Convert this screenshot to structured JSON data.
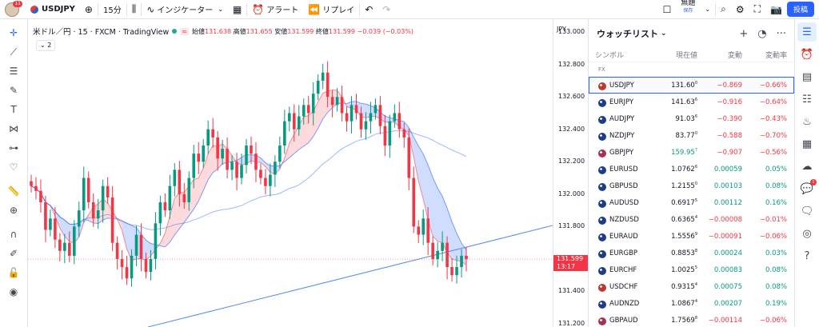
{
  "topbar": {
    "notif_count": "11",
    "symbol": "USDJPY",
    "interval": "15分",
    "indicators_label": "インジケーター",
    "alert_label": "アラート",
    "replay_label": "リプレイ",
    "layout_name": "無題",
    "layout_sub": "保存",
    "post_label": "投稿"
  },
  "chart": {
    "title": "米ドル／円 · 15 · FXCM · TradingView",
    "ohlc": {
      "open_label": "始値",
      "open": "131.638",
      "high_label": "高値",
      "high": "131.655",
      "low_label": "安値",
      "low": "131.599",
      "close_label": "終値",
      "close": "131.599",
      "change": "−0.039 (−0.03%)"
    },
    "indicator_toggle": "⌄ 2",
    "currency": "JPY",
    "current_price": "131.599",
    "countdown": "13:17",
    "axis_ticks": [
      "133.000",
      "132.800",
      "132.600",
      "132.400",
      "132.200",
      "132.000",
      "131.800",
      "131.400",
      "131.200"
    ]
  },
  "chart_data": {
    "type": "candlestick",
    "title": "",
    "ylim": [
      131.2,
      133.05
    ],
    "yticks": [
      131.2,
      131.4,
      131.8,
      132.0,
      132.2,
      132.4,
      132.6,
      132.8,
      133.0
    ],
    "close_series": [
      132.05,
      132.02,
      131.95,
      131.78,
      131.85,
      131.72,
      131.65,
      131.7,
      131.62,
      131.8,
      131.9,
      132.1,
      131.95,
      131.85,
      131.9,
      132.05,
      131.98,
      131.7,
      131.6,
      131.55,
      131.48,
      131.62,
      131.75,
      131.6,
      131.52,
      131.6,
      131.82,
      131.95,
      131.9,
      132.05,
      132.15,
      132.0,
      131.95,
      132.1,
      132.25,
      132.2,
      132.3,
      132.4,
      132.35,
      132.22,
      132.28,
      132.15,
      132.2,
      132.1,
      132.18,
      132.3,
      132.25,
      132.15,
      132.1,
      132.05,
      132.12,
      132.2,
      132.3,
      132.45,
      132.5,
      132.4,
      132.48,
      132.55,
      132.5,
      132.62,
      132.7,
      132.75,
      132.6,
      132.55,
      132.6,
      132.5,
      132.45,
      132.55,
      132.5,
      132.4,
      132.45,
      132.5,
      132.55,
      132.42,
      132.3,
      132.45,
      132.5,
      132.4,
      132.35,
      132.1,
      131.8,
      131.75,
      131.85,
      131.7,
      131.6,
      131.65,
      131.7,
      131.55,
      131.5,
      131.55,
      131.62,
      131.6
    ],
    "current_price": 131.599
  },
  "watchlist": {
    "title": "ウォッチリスト",
    "columns": {
      "symbol": "シンボル",
      "last": "現在値",
      "change": "変動",
      "change_pct": "変動率"
    },
    "group": "FX",
    "rows": [
      {
        "symbol": "USDJPY",
        "last": "131.60",
        "last_sup": "0",
        "change": "−0.869",
        "pct": "−0.66%",
        "dir": "neg",
        "flag": "#c0392b",
        "selected": true
      },
      {
        "symbol": "EURJPY",
        "last": "141.63",
        "last_sup": "6",
        "change": "−0.916",
        "pct": "−0.64%",
        "dir": "neg",
        "flag": "#1f3c88"
      },
      {
        "symbol": "AUDJPY",
        "last": "91.03",
        "last_sup": "6",
        "change": "−0.390",
        "pct": "−0.43%",
        "dir": "neg",
        "flag": "#1f3c88"
      },
      {
        "symbol": "NZDJPY",
        "last": "83.77",
        "last_sup": "0",
        "change": "−0.588",
        "pct": "−0.70%",
        "dir": "neg",
        "flag": "#1f3c88"
      },
      {
        "symbol": "GBPJPY",
        "last": "159.95",
        "last_sup": "7",
        "change": "−0.907",
        "pct": "−0.56%",
        "dir": "neg",
        "flag": "#a83250",
        "last_green": true
      },
      {
        "symbol": "EURUSD",
        "last": "1.0762",
        "last_sup": "6",
        "change": "0.00059",
        "pct": "0.05%",
        "dir": "pos",
        "flag": "#1f3c88"
      },
      {
        "symbol": "GBPUSD",
        "last": "1.2155",
        "last_sup": "0",
        "change": "0.00103",
        "pct": "0.08%",
        "dir": "pos",
        "flag": "#1f3c88"
      },
      {
        "symbol": "AUDUSD",
        "last": "0.6917",
        "last_sup": "5",
        "change": "0.00112",
        "pct": "0.16%",
        "dir": "pos",
        "flag": "#1f3c88"
      },
      {
        "symbol": "NZDUSD",
        "last": "0.6365",
        "last_sup": "4",
        "change": "−0.00008",
        "pct": "−0.01%",
        "dir": "neg",
        "flag": "#1f3c88"
      },
      {
        "symbol": "EURAUD",
        "last": "1.5556",
        "last_sup": "9",
        "change": "−0.00091",
        "pct": "−0.06%",
        "dir": "neg",
        "flag": "#1f3c88"
      },
      {
        "symbol": "EURGBP",
        "last": "0.8853",
        "last_sup": "8",
        "change": "0.00024",
        "pct": "0.03%",
        "dir": "pos",
        "flag": "#1f3c88"
      },
      {
        "symbol": "EURCHF",
        "last": "1.0025",
        "last_sup": "5",
        "change": "0.00083",
        "pct": "0.08%",
        "dir": "pos",
        "flag": "#1f3c88"
      },
      {
        "symbol": "USDCHF",
        "last": "0.9315",
        "last_sup": "4",
        "change": "0.00075",
        "pct": "0.08%",
        "dir": "pos",
        "flag": "#c0392b"
      },
      {
        "symbol": "AUDNZD",
        "last": "1.0867",
        "last_sup": "4",
        "change": "0.00207",
        "pct": "0.19%",
        "dir": "pos",
        "flag": "#1f3c88"
      },
      {
        "symbol": "GBPAUD",
        "last": "1.7569",
        "last_sup": "8",
        "change": "−0.00114",
        "pct": "−0.06%",
        "dir": "neg",
        "flag": "#a83250"
      }
    ]
  },
  "right_sidebar": {
    "badge": "1"
  },
  "colors": {
    "up": "#089981",
    "down": "#f23645",
    "accent": "#2962ff"
  }
}
